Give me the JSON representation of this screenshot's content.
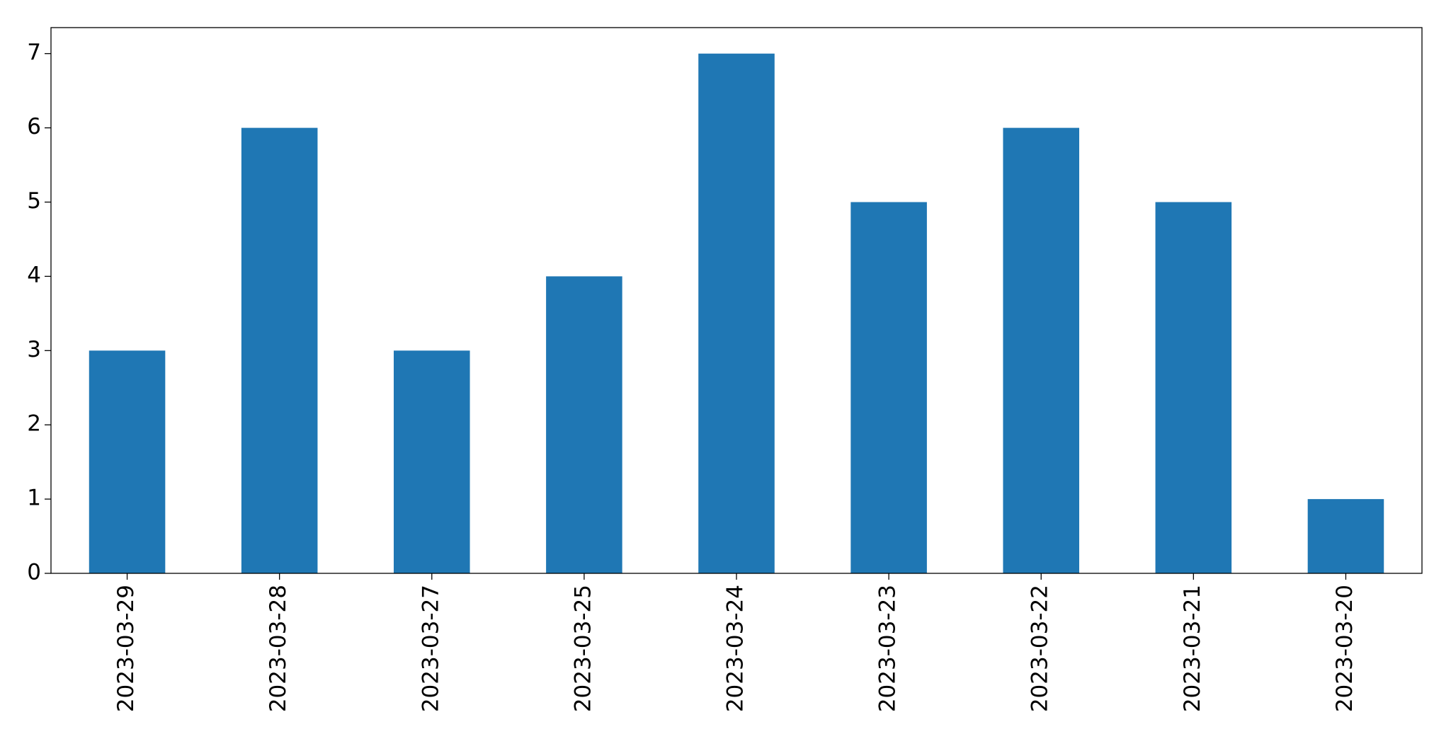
{
  "chart_data": {
    "type": "bar",
    "categories": [
      "2023-03-29",
      "2023-03-28",
      "2023-03-27",
      "2023-03-25",
      "2023-03-24",
      "2023-03-23",
      "2023-03-22",
      "2023-03-21",
      "2023-03-20"
    ],
    "values": [
      3,
      6,
      3,
      4,
      7,
      5,
      6,
      5,
      1
    ],
    "color": "#1f77b4",
    "ylim": [
      0,
      7.35
    ],
    "yticks": [
      0,
      1,
      2,
      3,
      4,
      5,
      6,
      7
    ],
    "grid": false
  }
}
